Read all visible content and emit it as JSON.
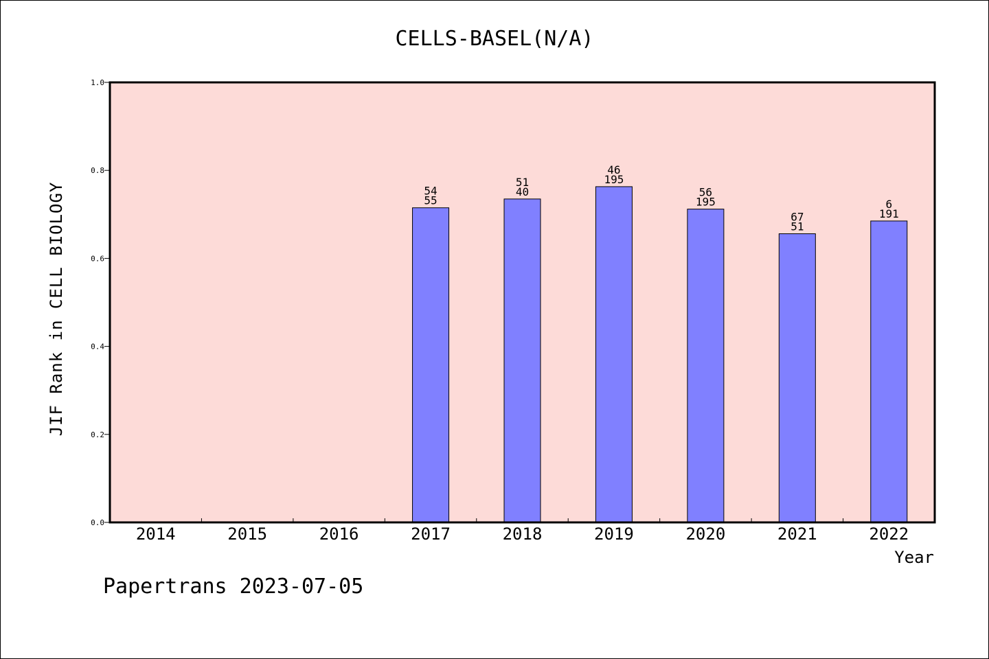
{
  "chart_data": {
    "type": "bar",
    "title": "CELLS-BASEL(N/A)",
    "xlabel": "Year",
    "ylabel": "JIF Rank in CELL BIOLOGY",
    "ylim": [
      0.0,
      1.0
    ],
    "yticks": [
      "0.0",
      "0.2",
      "0.4",
      "0.6",
      "0.8",
      "1.0"
    ],
    "categories": [
      "2014",
      "2015",
      "2016",
      "2017",
      "2018",
      "2019",
      "2020",
      "2021",
      "2022"
    ],
    "values": [
      null,
      null,
      null,
      0.715,
      0.735,
      0.763,
      0.712,
      0.656,
      0.685
    ],
    "data_labels": [
      null,
      null,
      null,
      {
        "top": "54",
        "bottom": "55"
      },
      {
        "top": "51",
        "bottom": "40"
      },
      {
        "top": "46",
        "bottom": "195"
      },
      {
        "top": "56",
        "bottom": "195"
      },
      {
        "top": "67",
        "bottom": "51"
      },
      {
        "top": "6",
        "bottom": "191"
      }
    ],
    "grid": false,
    "colors": {
      "plot_bg": "#fddbd8",
      "bar": "#8080ff",
      "axis": "#000000"
    }
  },
  "footer": {
    "text": "Papertrans 2023-07-05"
  }
}
